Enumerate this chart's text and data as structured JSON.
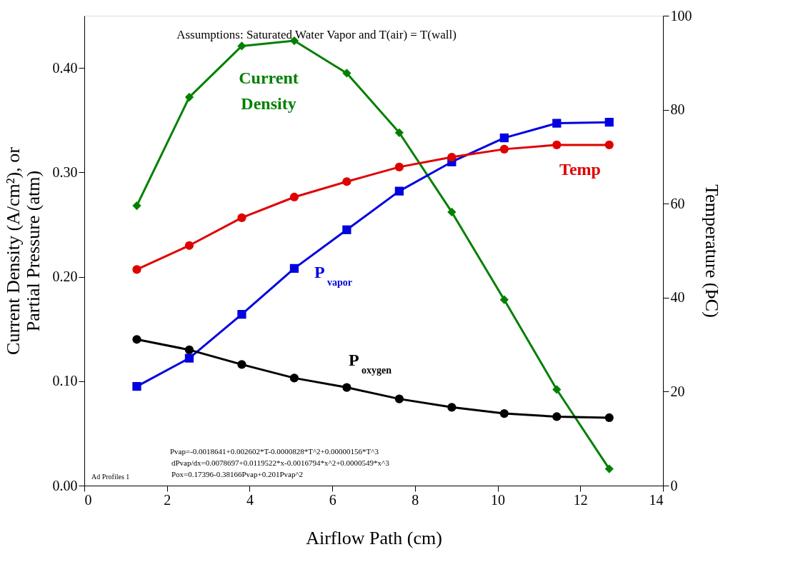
{
  "chart_data": {
    "type": "line",
    "xlabel": "Airflow Path (cm)",
    "ylabel": "Current Density (A/cm²), or\nPartial Pressure (atm)",
    "y2label": "Temperature (ÞC)",
    "x": [
      1.27,
      2.54,
      3.81,
      5.08,
      6.35,
      7.62,
      8.89,
      10.16,
      11.43,
      12.7
    ],
    "xlim": [
      0,
      14
    ],
    "xticks": [
      0,
      2,
      4,
      6,
      8,
      10,
      12,
      14
    ],
    "ylim": [
      0,
      0.45
    ],
    "yticks": [
      {
        "value": 0,
        "label": "0.00"
      },
      {
        "value": 0.1,
        "label": "0.10"
      },
      {
        "value": 0.2,
        "label": "0.20"
      },
      {
        "value": 0.3,
        "label": "0.30"
      },
      {
        "value": 0.4,
        "label": "0.40"
      }
    ],
    "y2lim": [
      0,
      100
    ],
    "y2ticks": [
      0,
      20,
      40,
      60,
      80,
      100
    ],
    "grid": false,
    "legend": false,
    "line_style": "solid",
    "series": [
      {
        "name": "Current Density",
        "color": "#008000",
        "marker": "diamond",
        "values": [
          0.268,
          0.372,
          0.421,
          0.426,
          0.395,
          0.338,
          0.262,
          0.178,
          0.092,
          0.016
        ]
      },
      {
        "name": "Temp",
        "color": "#e00000",
        "marker": "circle",
        "axis": "y2",
        "values": [
          46.0,
          51.1,
          57.0,
          61.4,
          64.7,
          67.8,
          69.9,
          71.6,
          72.5,
          72.5
        ]
      },
      {
        "name": "P$_{vapor}$",
        "color": "#0000e0",
        "marker": "square",
        "values": [
          0.095,
          0.122,
          0.164,
          0.208,
          0.245,
          0.282,
          0.31,
          0.333,
          0.347,
          0.348
        ]
      },
      {
        "name": "P$_{oxygen}$",
        "color": "#000000",
        "marker": "circle",
        "values": [
          0.14,
          0.13,
          0.116,
          0.103,
          0.094,
          0.083,
          0.075,
          0.069,
          0.066,
          0.065
        ]
      }
    ],
    "annotations": [
      "Assumptions: Saturated Water Vapor and T(air) = T(wall)",
      "Pvap=-0.0018641+0.002602*T-0.0000828*T^2+0.00000156*T^3",
      "dPvap/dx=0.0078697+0.0119522*x-0.0016794*x^2+0.0000549*x^3",
      "Pox=0.17396-0.38166Pvap+0.201Pvap^2",
      "Ad Profiles 1"
    ]
  }
}
